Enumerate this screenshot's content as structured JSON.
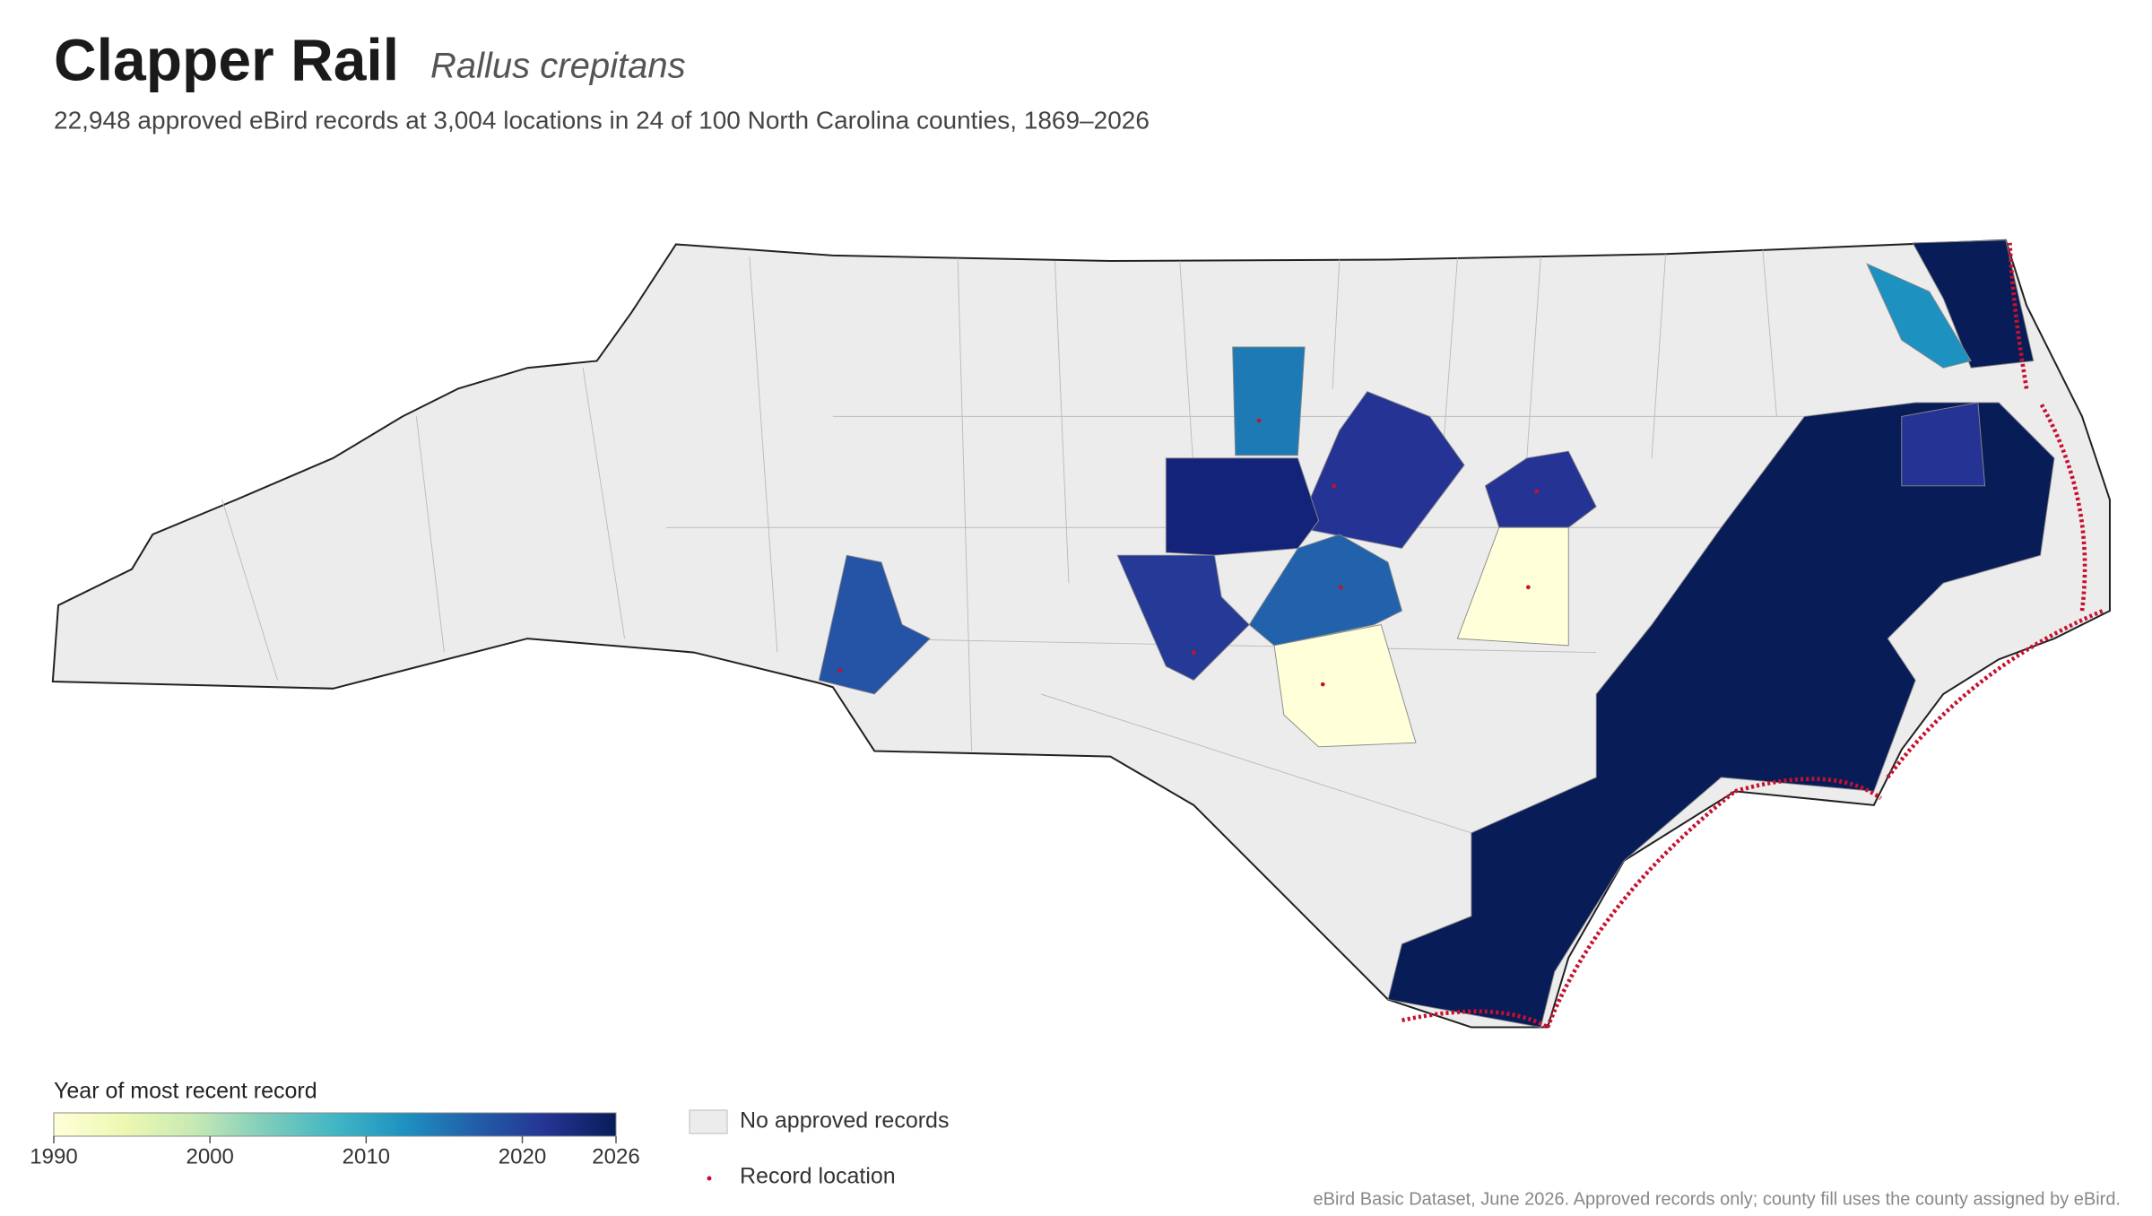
{
  "header": {
    "title": "Clapper Rail",
    "species": "Rallus crepitans",
    "subtitle": "22,948 approved eBird records at 3,004 locations in 24 of 100 North Carolina counties, 1869–2026"
  },
  "colorbar": {
    "title": "Year of most recent record",
    "lim": [
      1990,
      2026
    ],
    "ticks": [
      1990,
      2000,
      2010,
      2020,
      2026
    ],
    "colors": [
      "#ffffd9",
      "#edf8b1",
      "#c7e9b4",
      "#7fcdbb",
      "#41b6c4",
      "#1d91c0",
      "#225ea8",
      "#253494",
      "#081d58"
    ]
  },
  "legend": {
    "no_records": "No approved records",
    "no_records_color": "#ececec",
    "record_location": "Record location",
    "record_color": "#c8102e"
  },
  "source": "eBird Basic Dataset, June 2026. Approved records only; county fill uses the county assigned by eBird."
}
